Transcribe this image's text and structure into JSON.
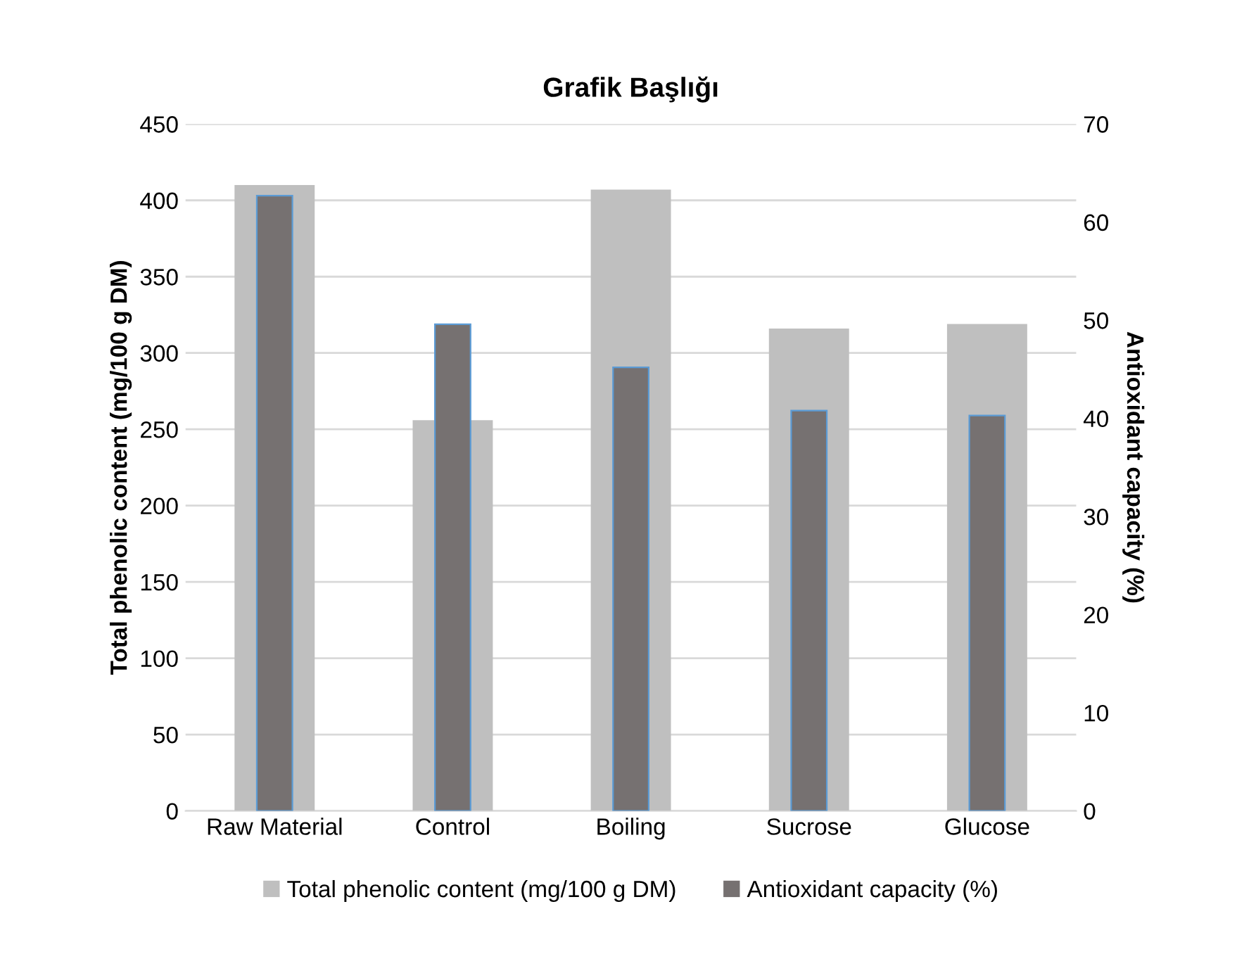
{
  "chart_data": {
    "type": "bar",
    "title": "Grafik Başlığı",
    "categories": [
      "Raw Material",
      "Control",
      "Boiling",
      "Sucrose",
      "Glucose"
    ],
    "series": [
      {
        "name": "Total phenolic content (mg/100 g DM)",
        "color": "#bfbfbf",
        "values": [
          410,
          256,
          407,
          316,
          319
        ]
      },
      {
        "name": "Antioxidant capacity (%)",
        "color": "#767171",
        "axis": "y2",
        "values": [
          62.7,
          49.6,
          45.2,
          40.8,
          40.3
        ]
      }
    ],
    "ylabel": "Total phenolic content (mg/100 g DM)",
    "y2label": "Antioxidant capacity (%)",
    "ylim": [
      0,
      450
    ],
    "yticks": [
      0,
      50,
      100,
      150,
      200,
      250,
      300,
      350,
      400,
      450
    ],
    "y2lim": [
      0,
      70
    ],
    "y2ticks": [
      0,
      10,
      20,
      30,
      40,
      50,
      60,
      70
    ],
    "grid": "y",
    "legend": "bottom"
  }
}
